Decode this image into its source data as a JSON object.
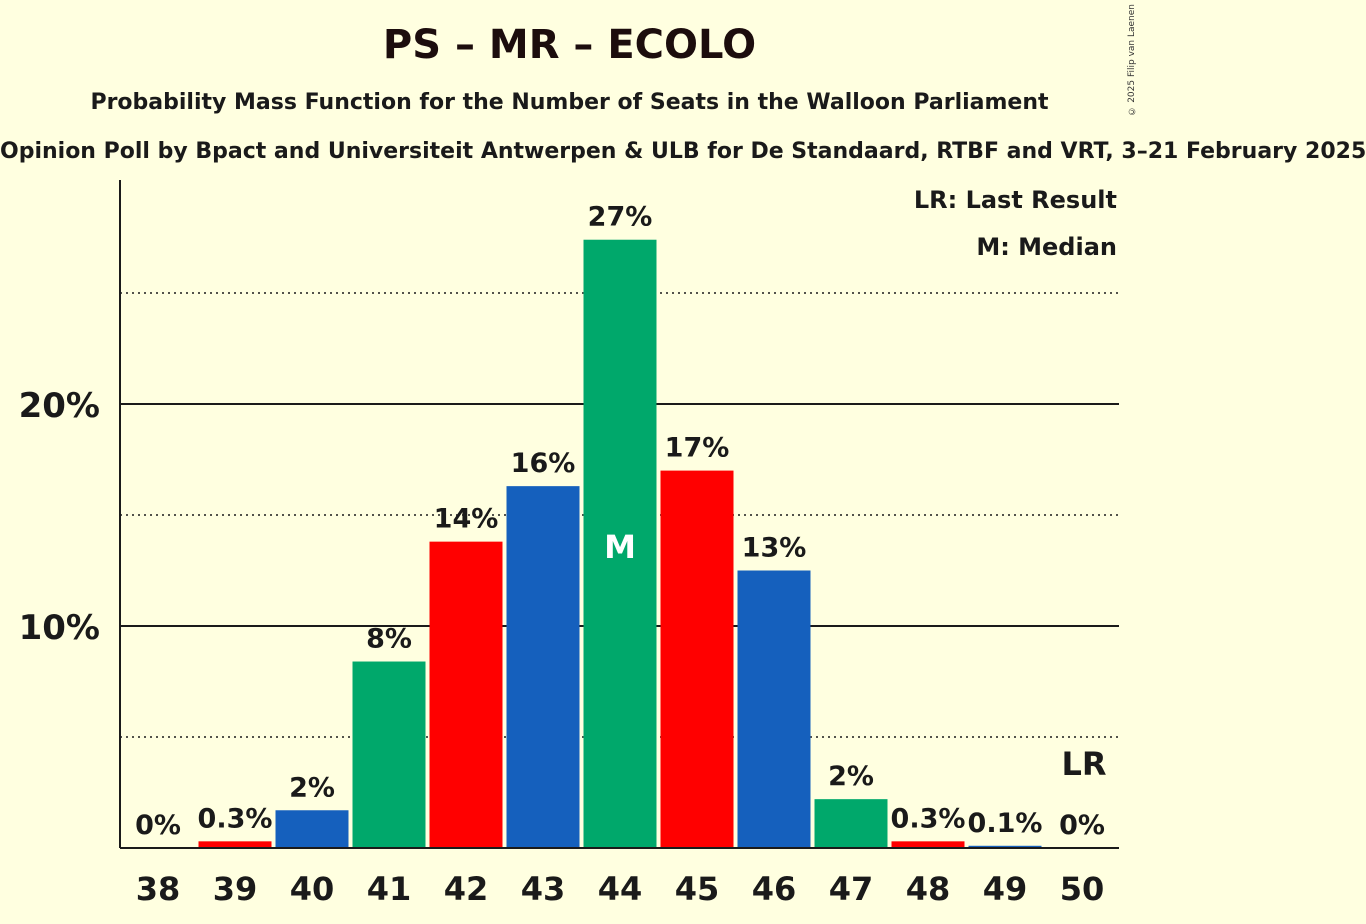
{
  "title": "PS – MR – ECOLO",
  "subtitle": "Probability Mass Function for the Number of Seats in the Walloon Parliament",
  "source": "Opinion Poll by Bpact and Universiteit Antwerpen & ULB for De Standaard, RTBF and VRT, 3–21 February 2025",
  "copyright": "© 2025 Filip van Laenen",
  "legend": {
    "last_result": "LR: Last Result",
    "median": "M: Median"
  },
  "chart_data": {
    "type": "bar",
    "categories": [
      "38",
      "39",
      "40",
      "41",
      "42",
      "43",
      "44",
      "45",
      "46",
      "47",
      "48",
      "49",
      "50"
    ],
    "values": [
      0,
      0.3,
      1.7,
      8.4,
      13.8,
      16.3,
      27.4,
      17.0,
      12.5,
      2.2,
      0.3,
      0.1,
      0
    ],
    "labels": [
      "0%",
      "0.3%",
      "2%",
      "8%",
      "14%",
      "16%",
      "27%",
      "17%",
      "13%",
      "2%",
      "0.3%",
      "0.1%",
      "0%"
    ],
    "colors": [
      "#ff0000",
      "#ff0000",
      "#1560bd",
      "#00a86b",
      "#ff0000",
      "#1560bd",
      "#00a86b",
      "#ff0000",
      "#1560bd",
      "#00a86b",
      "#ff0000",
      "#1560bd",
      "#00a86b"
    ],
    "yticks": [
      10,
      20
    ],
    "ytick_labels": [
      "10%",
      "20%"
    ],
    "minor_gridlines": [
      5,
      15,
      25
    ],
    "ylim": [
      0,
      30
    ],
    "median_category": "44",
    "median_marker": "M",
    "last_result_category": "50",
    "last_result_marker": "LR"
  }
}
